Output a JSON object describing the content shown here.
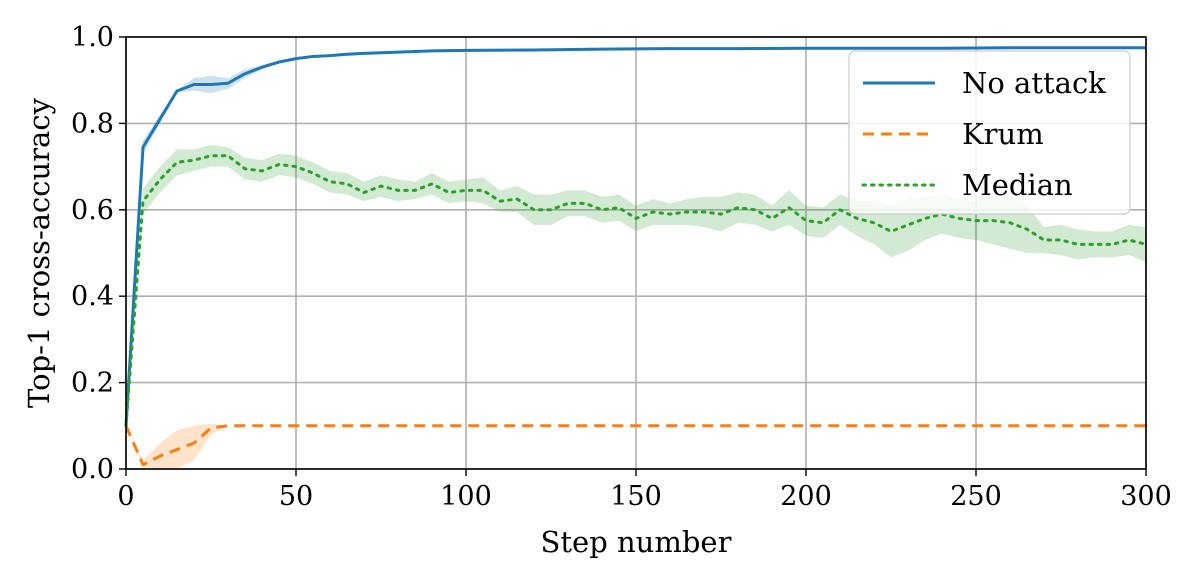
{
  "chart_data": {
    "type": "line",
    "title": "",
    "xlabel": "Step number",
    "ylabel": "Top-1 cross-accuracy",
    "xlim": [
      0,
      300
    ],
    "ylim": [
      0.0,
      1.0
    ],
    "grid": true,
    "legend_position": "top-right",
    "x_ticks": [
      "0",
      "50",
      "100",
      "150",
      "200",
      "250",
      "300"
    ],
    "y_ticks": [
      "0.0",
      "0.2",
      "0.4",
      "0.6",
      "0.8",
      "1.0"
    ],
    "series": [
      {
        "name": "No attack",
        "color": "#1f77b4",
        "style": "solid",
        "x": [
          0,
          5,
          10,
          15,
          20,
          25,
          30,
          35,
          40,
          45,
          50,
          55,
          60,
          65,
          70,
          80,
          90,
          100,
          120,
          140,
          160,
          180,
          200,
          220,
          240,
          260,
          280,
          300
        ],
        "y": [
          0.1,
          0.745,
          0.81,
          0.875,
          0.89,
          0.89,
          0.893,
          0.915,
          0.93,
          0.942,
          0.95,
          0.955,
          0.957,
          0.96,
          0.962,
          0.965,
          0.968,
          0.969,
          0.97,
          0.972,
          0.973,
          0.973,
          0.974,
          0.974,
          0.974,
          0.975,
          0.975,
          0.975
        ],
        "lower": [
          0.1,
          0.73,
          0.8,
          0.872,
          0.876,
          0.87,
          0.88,
          0.905,
          0.925,
          0.938,
          0.947,
          0.952,
          0.955,
          0.958,
          0.96,
          0.963,
          0.966,
          0.967,
          0.968,
          0.97,
          0.971,
          0.971,
          0.972,
          0.972,
          0.972,
          0.973,
          0.973,
          0.973
        ],
        "upper": [
          0.1,
          0.76,
          0.82,
          0.878,
          0.905,
          0.91,
          0.905,
          0.925,
          0.935,
          0.946,
          0.953,
          0.958,
          0.959,
          0.962,
          0.964,
          0.967,
          0.97,
          0.971,
          0.972,
          0.974,
          0.975,
          0.975,
          0.976,
          0.976,
          0.976,
          0.977,
          0.977,
          0.977
        ]
      },
      {
        "name": "Krum",
        "color": "#ff7f0e",
        "style": "dashed",
        "x": [
          0,
          5,
          10,
          15,
          20,
          25,
          30,
          35,
          40,
          50,
          100,
          150,
          200,
          250,
          300
        ],
        "y": [
          0.1,
          0.01,
          0.03,
          0.045,
          0.06,
          0.095,
          0.1,
          0.1,
          0.1,
          0.1,
          0.1,
          0.1,
          0.1,
          0.1,
          0.1
        ],
        "lower": [
          0.1,
          0.005,
          0.0,
          0.0,
          0.02,
          0.08,
          0.1,
          0.1,
          0.1,
          0.1,
          0.1,
          0.1,
          0.1,
          0.1,
          0.1
        ],
        "upper": [
          0.1,
          0.02,
          0.06,
          0.09,
          0.1,
          0.105,
          0.1,
          0.1,
          0.1,
          0.1,
          0.1,
          0.1,
          0.1,
          0.1,
          0.1
        ]
      },
      {
        "name": "Median",
        "color": "#2ca02c",
        "style": "dotted",
        "x": [
          0,
          5,
          10,
          15,
          20,
          25,
          30,
          35,
          40,
          45,
          50,
          55,
          60,
          65,
          70,
          75,
          80,
          85,
          90,
          95,
          100,
          105,
          110,
          115,
          120,
          125,
          130,
          135,
          140,
          145,
          150,
          155,
          160,
          165,
          170,
          175,
          180,
          185,
          190,
          195,
          200,
          205,
          210,
          215,
          220,
          225,
          230,
          235,
          240,
          245,
          250,
          255,
          260,
          265,
          270,
          275,
          280,
          285,
          290,
          295,
          300
        ],
        "y": [
          0.1,
          0.62,
          0.67,
          0.71,
          0.715,
          0.725,
          0.725,
          0.695,
          0.69,
          0.705,
          0.7,
          0.685,
          0.665,
          0.66,
          0.64,
          0.655,
          0.645,
          0.645,
          0.66,
          0.64,
          0.645,
          0.645,
          0.62,
          0.625,
          0.6,
          0.6,
          0.615,
          0.615,
          0.6,
          0.605,
          0.58,
          0.595,
          0.59,
          0.595,
          0.595,
          0.59,
          0.605,
          0.6,
          0.58,
          0.605,
          0.575,
          0.57,
          0.6,
          0.58,
          0.57,
          0.55,
          0.565,
          0.58,
          0.59,
          0.58,
          0.575,
          0.575,
          0.57,
          0.555,
          0.53,
          0.53,
          0.52,
          0.52,
          0.52,
          0.53,
          0.52
        ],
        "lower": [
          0.1,
          0.59,
          0.64,
          0.68,
          0.69,
          0.7,
          0.7,
          0.67,
          0.665,
          0.68,
          0.675,
          0.66,
          0.64,
          0.635,
          0.62,
          0.63,
          0.62,
          0.625,
          0.635,
          0.615,
          0.62,
          0.615,
          0.595,
          0.595,
          0.565,
          0.565,
          0.585,
          0.585,
          0.57,
          0.575,
          0.55,
          0.565,
          0.565,
          0.565,
          0.56,
          0.55,
          0.57,
          0.565,
          0.55,
          0.565,
          0.54,
          0.535,
          0.565,
          0.54,
          0.52,
          0.49,
          0.505,
          0.53,
          0.545,
          0.535,
          0.53,
          0.52,
          0.51,
          0.5,
          0.5,
          0.495,
          0.485,
          0.49,
          0.49,
          0.495,
          0.48
        ],
        "upper": [
          0.1,
          0.65,
          0.7,
          0.74,
          0.74,
          0.75,
          0.745,
          0.72,
          0.715,
          0.73,
          0.725,
          0.71,
          0.69,
          0.685,
          0.665,
          0.68,
          0.67,
          0.665,
          0.685,
          0.665,
          0.67,
          0.675,
          0.645,
          0.655,
          0.635,
          0.635,
          0.645,
          0.645,
          0.63,
          0.635,
          0.61,
          0.625,
          0.615,
          0.625,
          0.63,
          0.63,
          0.64,
          0.635,
          0.61,
          0.645,
          0.61,
          0.605,
          0.635,
          0.62,
          0.62,
          0.61,
          0.625,
          0.63,
          0.635,
          0.625,
          0.62,
          0.63,
          0.63,
          0.61,
          0.56,
          0.565,
          0.555,
          0.55,
          0.55,
          0.565,
          0.56
        ]
      }
    ]
  }
}
